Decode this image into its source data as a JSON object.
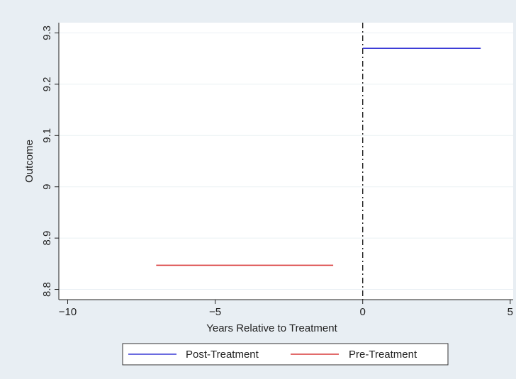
{
  "chart_data": {
    "type": "line",
    "xlabel": "Years Relative to Treatment",
    "ylabel": "Outcome",
    "xlim": [
      -10.3,
      5.1
    ],
    "ylim": [
      8.78,
      9.32
    ],
    "x_ticks": [
      -10,
      -5,
      0,
      5
    ],
    "x_tick_labels": [
      "−10",
      "−5",
      "0",
      "5"
    ],
    "y_ticks": [
      8.8,
      8.9,
      9.0,
      9.1,
      9.2,
      9.3
    ],
    "y_tick_labels": [
      "8.8",
      "8.9",
      "9",
      "9.1",
      "9.2",
      "9.3"
    ],
    "grid": "horizontal",
    "legend_position": "bottom",
    "vertical_reference_line": {
      "x": 0,
      "style": "dash-dot",
      "color": "#222222"
    },
    "series": [
      {
        "name": "Post-Treatment",
        "color": "#3a3ad6",
        "x": [
          0,
          4
        ],
        "y": [
          9.27,
          9.27
        ]
      },
      {
        "name": "Pre-Treatment",
        "color": "#d93a3a",
        "x": [
          -7,
          -1
        ],
        "y": [
          8.847,
          8.847
        ]
      }
    ]
  },
  "colors": {
    "background": "#e8eef3",
    "plot_background": "#ffffff",
    "gridline": "#eaf0f4"
  }
}
